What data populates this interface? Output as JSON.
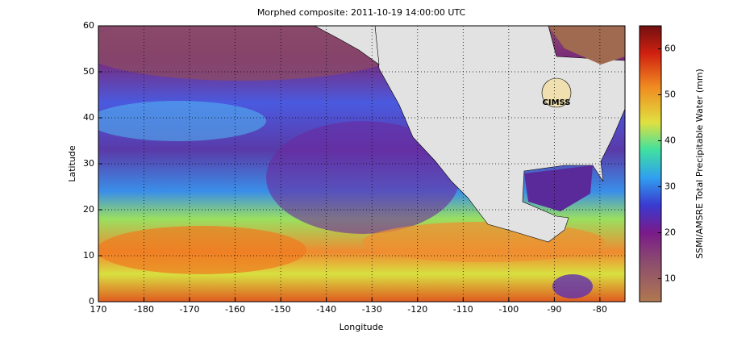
{
  "map": {
    "title": "Morphed composite: 2011-10-19 14:00:00 UTC",
    "xlabel": "Longitude",
    "ylabel": "Latitude",
    "xlim": [
      170,
      -74.5
    ],
    "xticks": [
      170,
      -180,
      -170,
      -160,
      -150,
      -140,
      -130,
      -120,
      -110,
      -100,
      -90,
      -80
    ],
    "ylim": [
      0,
      60
    ],
    "yticks": [
      0,
      10,
      20,
      30,
      40,
      50,
      60
    ],
    "grid": true,
    "logo": "CIMSS",
    "colorbar": {
      "label": "SSMI/AMSRE Total Precipitable Water (mm)",
      "clim": [
        5,
        65
      ],
      "ticks": [
        10,
        20,
        30,
        40,
        50,
        60
      ]
    }
  }
}
